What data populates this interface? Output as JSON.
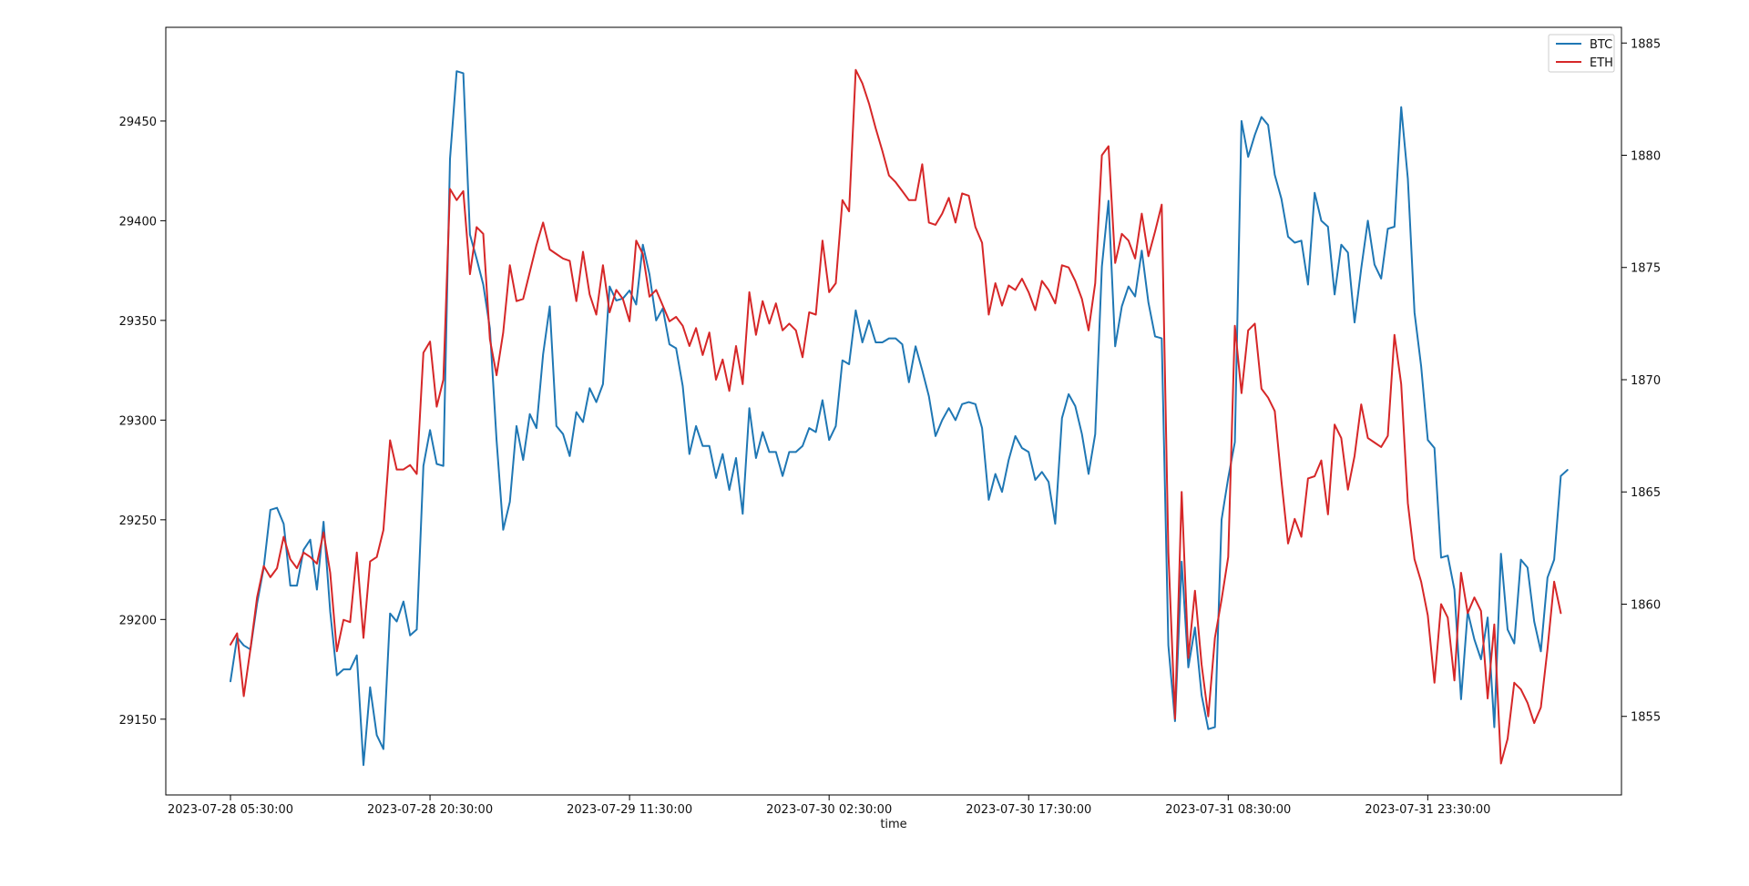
{
  "chart_data": {
    "type": "line",
    "xlabel": "time",
    "x_tick_labels": [
      "2023-07-28 05:30:00",
      "2023-07-28 20:30:00",
      "2023-07-29 11:30:00",
      "2023-07-30 02:30:00",
      "2023-07-30 17:30:00",
      "2023-07-31 08:30:00",
      "2023-07-31 23:30:00"
    ],
    "x_count": 200,
    "x_tick_index_step": 30,
    "y_left": {
      "ticks": [
        29150,
        29200,
        29250,
        29300,
        29350,
        29400,
        29450
      ],
      "lim": [
        29112,
        29497
      ]
    },
    "y_right": {
      "ticks": [
        1855,
        1860,
        1865,
        1870,
        1875,
        1880,
        1885
      ],
      "lim": [
        1851.5,
        1885.7
      ]
    },
    "legend": {
      "position": "top-right"
    },
    "series": [
      {
        "name": "BTC",
        "axis": "left",
        "color": "#1f77b4",
        "values": [
          29169,
          29191,
          29187,
          29185,
          29208,
          29226,
          29255,
          29256,
          29248,
          29217,
          29217,
          29235,
          29240,
          29215,
          29249,
          29204,
          29172,
          29175,
          29175,
          29182,
          29127,
          29166,
          29142,
          29135,
          29203,
          29199,
          29209,
          29192,
          29195,
          29277,
          29295,
          29278,
          29277,
          29431,
          29475,
          29474,
          29393,
          29381,
          29368,
          29346,
          29290,
          29245,
          29259,
          29297,
          29280,
          29303,
          29296,
          29333,
          29357,
          29297,
          29293,
          29282,
          29304,
          29299,
          29316,
          29309,
          29318,
          29367,
          29360,
          29361,
          29365,
          29358,
          29388,
          29373,
          29350,
          29356,
          29338,
          29336,
          29317,
          29283,
          29297,
          29287,
          29287,
          29271,
          29283,
          29265,
          29281,
          29253,
          29306,
          29281,
          29294,
          29284,
          29284,
          29272,
          29284,
          29284,
          29287,
          29296,
          29294,
          29310,
          29290,
          29297,
          29330,
          29328,
          29355,
          29339,
          29350,
          29339,
          29339,
          29341,
          29341,
          29338,
          29319,
          29337,
          29325,
          29312,
          29292,
          29300,
          29306,
          29300,
          29308,
          29309,
          29308,
          29296,
          29260,
          29273,
          29264,
          29280,
          29292,
          29286,
          29284,
          29270,
          29274,
          29269,
          29248,
          29301,
          29313,
          29307,
          29293,
          29273,
          29293,
          29377,
          29410,
          29337,
          29357,
          29367,
          29362,
          29385,
          29359,
          29342,
          29341,
          29187,
          29149,
          29229,
          29176,
          29196,
          29162,
          29145,
          29146,
          29250,
          29271,
          29289,
          29450,
          29432,
          29443,
          29452,
          29448,
          29423,
          29411,
          29392,
          29389,
          29390,
          29368,
          29414,
          29400,
          29397,
          29363,
          29388,
          29384,
          29349,
          29376,
          29400,
          29378,
          29371,
          29396,
          29397,
          29457,
          29421,
          29354,
          29327,
          29290,
          29286,
          29231,
          29232,
          29215,
          29160,
          29204,
          29190,
          29180,
          29201,
          29146,
          29233,
          29195,
          29188,
          29230,
          29226,
          29199,
          29184,
          29221,
          29230,
          29272,
          29275
        ]
      },
      {
        "name": "ETH",
        "axis": "right",
        "color": "#d62728",
        "values": [
          1858.2,
          1858.7,
          1855.9,
          1858.0,
          1860.3,
          1861.7,
          1861.2,
          1861.6,
          1863.0,
          1862.0,
          1861.6,
          1862.3,
          1862.1,
          1861.8,
          1863.2,
          1861.4,
          1857.9,
          1859.3,
          1859.2,
          1862.3,
          1858.5,
          1861.9,
          1862.1,
          1863.3,
          1867.3,
          1866.0,
          1866.0,
          1866.2,
          1865.8,
          1871.2,
          1871.7,
          1868.8,
          1870.0,
          1878.5,
          1878.0,
          1878.4,
          1874.7,
          1876.8,
          1876.5,
          1871.8,
          1870.2,
          1872.1,
          1875.1,
          1873.5,
          1873.6,
          1874.8,
          1876.0,
          1877.0,
          1875.8,
          1875.6,
          1875.4,
          1875.3,
          1873.5,
          1875.7,
          1873.8,
          1872.9,
          1875.1,
          1873.0,
          1874.0,
          1873.6,
          1872.6,
          1876.2,
          1875.6,
          1873.7,
          1874.0,
          1873.3,
          1872.6,
          1872.8,
          1872.4,
          1871.5,
          1872.3,
          1871.1,
          1872.1,
          1870.0,
          1870.9,
          1869.5,
          1871.5,
          1869.8,
          1873.9,
          1872.0,
          1873.5,
          1872.5,
          1873.4,
          1872.2,
          1872.5,
          1872.2,
          1871.0,
          1873.0,
          1872.9,
          1876.2,
          1873.9,
          1874.3,
          1878.0,
          1877.5,
          1883.8,
          1883.2,
          1882.3,
          1881.2,
          1880.2,
          1879.1,
          1878.8,
          1878.4,
          1878.0,
          1878.0,
          1879.6,
          1877.0,
          1876.9,
          1877.4,
          1878.1,
          1877.0,
          1878.3,
          1878.2,
          1876.8,
          1876.1,
          1872.9,
          1874.3,
          1873.3,
          1874.2,
          1874.0,
          1874.5,
          1873.9,
          1873.1,
          1874.4,
          1874.0,
          1873.4,
          1875.1,
          1875.0,
          1874.4,
          1873.6,
          1872.2,
          1874.3,
          1880.0,
          1880.4,
          1875.2,
          1876.5,
          1876.2,
          1875.4,
          1877.4,
          1875.5,
          1876.6,
          1877.8,
          1862.3,
          1854.9,
          1865.0,
          1857.6,
          1860.6,
          1857.3,
          1855.0,
          1858.5,
          1860.2,
          1862.1,
          1872.4,
          1869.4,
          1872.2,
          1872.5,
          1869.6,
          1869.2,
          1868.6,
          1865.5,
          1862.7,
          1863.8,
          1863.0,
          1865.6,
          1865.7,
          1866.4,
          1864.0,
          1868.0,
          1867.4,
          1865.1,
          1866.6,
          1868.9,
          1867.4,
          1867.2,
          1867.0,
          1867.5,
          1872.0,
          1869.8,
          1864.5,
          1862.0,
          1861.0,
          1859.5,
          1856.5,
          1860.0,
          1859.4,
          1856.6,
          1861.4,
          1859.6,
          1860.3,
          1859.7,
          1855.8,
          1859.1,
          1852.9,
          1854.0,
          1856.5,
          1856.2,
          1855.6,
          1854.7,
          1855.4,
          1858.0,
          1861.0,
          1859.6
        ]
      }
    ]
  }
}
